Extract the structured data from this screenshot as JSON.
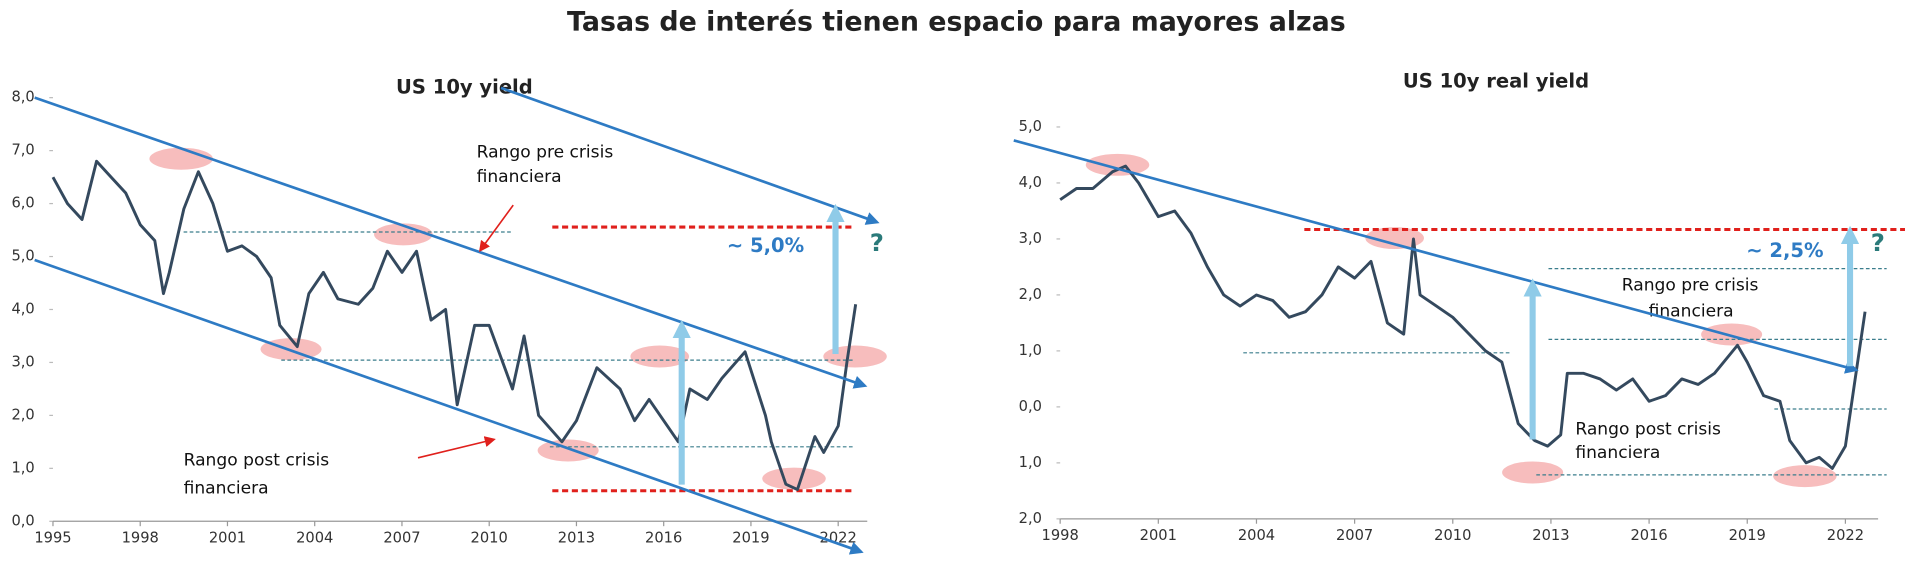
{
  "title": "Tasas de interés tienen espacio para mayores alzas",
  "chart_data": [
    {
      "type": "line",
      "title": "US 10y yield",
      "x": [
        1995.0,
        1995.5,
        1996.0,
        1996.5,
        1997.0,
        1997.5,
        1998.0,
        1998.5,
        1998.8,
        1999.0,
        1999.5,
        2000.0,
        2000.5,
        2001.0,
        2001.5,
        2002.0,
        2002.5,
        2002.8,
        2003.4,
        2003.8,
        2004.3,
        2004.8,
        2005.5,
        2006.0,
        2006.5,
        2007.0,
        2007.5,
        2008.0,
        2008.5,
        2008.9,
        2009.5,
        2010.0,
        2010.8,
        2011.2,
        2011.7,
        2012.5,
        2013.0,
        2013.7,
        2014.5,
        2015.0,
        2015.5,
        2016.5,
        2016.9,
        2017.5,
        2018.0,
        2018.8,
        2019.5,
        2019.7,
        2020.2,
        2020.6,
        2021.2,
        2021.5,
        2022.0,
        2022.3,
        2022.6
      ],
      "values": [
        6.5,
        6.0,
        5.7,
        6.8,
        6.5,
        6.2,
        5.6,
        5.3,
        4.3,
        4.7,
        5.9,
        6.6,
        6.0,
        5.1,
        5.2,
        5.0,
        4.6,
        3.7,
        3.3,
        4.3,
        4.7,
        4.2,
        4.1,
        4.4,
        5.1,
        4.7,
        5.1,
        3.8,
        4.0,
        2.2,
        3.7,
        3.7,
        2.5,
        3.5,
        2.0,
        1.5,
        1.9,
        2.9,
        2.5,
        1.9,
        2.3,
        1.5,
        2.5,
        2.3,
        2.7,
        3.2,
        2.0,
        1.5,
        0.7,
        0.6,
        1.6,
        1.3,
        1.8,
        3.0,
        4.1
      ],
      "color": "#34495e",
      "xlim": [
        1995,
        2023
      ],
      "xticks": [
        1995,
        1998,
        2001,
        2004,
        2007,
        2010,
        2013,
        2016,
        2019,
        2022
      ],
      "ylim": [
        0,
        8
      ],
      "yticks": [
        {
          "value": 0,
          "label": "0,0"
        },
        {
          "value": 1,
          "label": "1,0"
        },
        {
          "value": 2,
          "label": "2,0"
        },
        {
          "value": 3,
          "label": "3,0"
        },
        {
          "value": 4,
          "label": "4,0"
        },
        {
          "value": 5,
          "label": "5,0"
        },
        {
          "value": 6,
          "label": "6,0"
        },
        {
          "value": 7,
          "label": "7,0"
        },
        {
          "value": 8,
          "label": "8,0"
        }
      ],
      "annotations": [
        "Rango pre crisis",
        "financiera",
        "Rango post crisis",
        "financiera",
        "~ 5,0%",
        "?"
      ]
    },
    {
      "type": "line",
      "title": "US 10y real yield",
      "x": [
        1998.0,
        1998.5,
        1999.0,
        1999.6,
        2000.0,
        2000.4,
        2001.0,
        2001.5,
        2002.0,
        2002.5,
        2003.0,
        2003.5,
        2004.0,
        2004.5,
        2005.0,
        2005.5,
        2006.0,
        2006.5,
        2007.0,
        2007.5,
        2008.0,
        2008.5,
        2008.8,
        2009.0,
        2009.5,
        2010.0,
        2010.5,
        2011.0,
        2011.5,
        2012.0,
        2012.5,
        2012.9,
        2013.3,
        2013.5,
        2014.0,
        2014.5,
        2015.0,
        2015.5,
        2016.0,
        2016.5,
        2017.0,
        2017.5,
        2018.0,
        2018.7,
        2019.0,
        2019.5,
        2020.0,
        2020.3,
        2020.8,
        2021.2,
        2021.6,
        2022.0,
        2022.3,
        2022.6
      ],
      "values": [
        3.7,
        3.9,
        3.9,
        4.2,
        4.3,
        4.0,
        3.4,
        3.5,
        3.1,
        2.5,
        2.0,
        1.8,
        2.0,
        1.9,
        1.6,
        1.7,
        2.0,
        2.5,
        2.3,
        2.6,
        1.5,
        1.3,
        3.0,
        2.0,
        1.8,
        1.6,
        1.3,
        1.0,
        0.8,
        -0.3,
        -0.6,
        -0.7,
        -0.5,
        0.6,
        0.6,
        0.5,
        0.3,
        0.5,
        0.1,
        0.2,
        0.5,
        0.4,
        0.6,
        1.1,
        0.8,
        0.2,
        0.1,
        -0.6,
        -1.0,
        -0.9,
        -1.1,
        -0.7,
        0.5,
        1.7
      ],
      "color": "#34495e",
      "xlim": [
        1998,
        2023
      ],
      "xticks": [
        1998,
        2001,
        2004,
        2007,
        2010,
        2013,
        2016,
        2019,
        2022
      ],
      "ylim": [
        -2,
        5
      ],
      "yticks": [
        {
          "value": -2,
          "label": "2,0"
        },
        {
          "value": -1,
          "label": "1,0"
        },
        {
          "value": 0,
          "label": "0,0"
        },
        {
          "value": 1,
          "label": "1,0"
        },
        {
          "value": 2,
          "label": "2,0"
        },
        {
          "value": 3,
          "label": "3,0"
        },
        {
          "value": 4,
          "label": "4,0"
        },
        {
          "value": 5,
          "label": "5,0"
        }
      ],
      "annotations": [
        "Rango pre crisis",
        "financiera",
        "Rango post crisis",
        "financiera",
        "~ 2,5%",
        "?"
      ]
    }
  ]
}
